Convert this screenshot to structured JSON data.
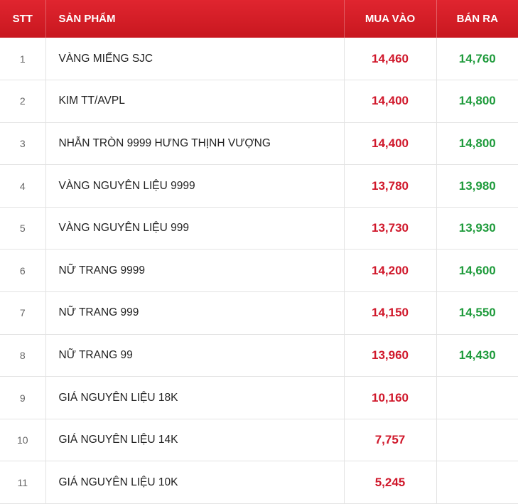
{
  "header": {
    "stt": "STT",
    "product": "SẢN PHẨM",
    "buy": "MUA VÀO",
    "sell": "BÁN RA"
  },
  "colors": {
    "header_bg": "#d91f29",
    "buy": "#d0182b",
    "sell": "#1f9b3c"
  },
  "rows": [
    {
      "stt": "1",
      "name": "VÀNG MIẾNG SJC",
      "buy": "14,460",
      "sell": "14,760"
    },
    {
      "stt": "2",
      "name": "KIM TT/AVPL",
      "buy": "14,400",
      "sell": "14,800"
    },
    {
      "stt": "3",
      "name": "NHẪN TRÒN 9999 HƯNG THỊNH VƯỢNG",
      "buy": "14,400",
      "sell": "14,800"
    },
    {
      "stt": "4",
      "name": "VÀNG NGUYÊN LIỆU 9999",
      "buy": "13,780",
      "sell": "13,980"
    },
    {
      "stt": "5",
      "name": "VÀNG NGUYÊN LIỆU 999",
      "buy": "13,730",
      "sell": "13,930"
    },
    {
      "stt": "6",
      "name": "NỮ TRANG 9999",
      "buy": "14,200",
      "sell": "14,600"
    },
    {
      "stt": "7",
      "name": "NỮ TRANG 999",
      "buy": "14,150",
      "sell": "14,550"
    },
    {
      "stt": "8",
      "name": "NỮ TRANG 99",
      "buy": "13,960",
      "sell": "14,430"
    },
    {
      "stt": "9",
      "name": "GIÁ NGUYÊN LIỆU 18K",
      "buy": "10,160",
      "sell": ""
    },
    {
      "stt": "10",
      "name": "GIÁ NGUYÊN LIỆU 14K",
      "buy": "7,757",
      "sell": ""
    },
    {
      "stt": "11",
      "name": "GIÁ NGUYÊN LIỆU 10K",
      "buy": "5,245",
      "sell": ""
    }
  ]
}
